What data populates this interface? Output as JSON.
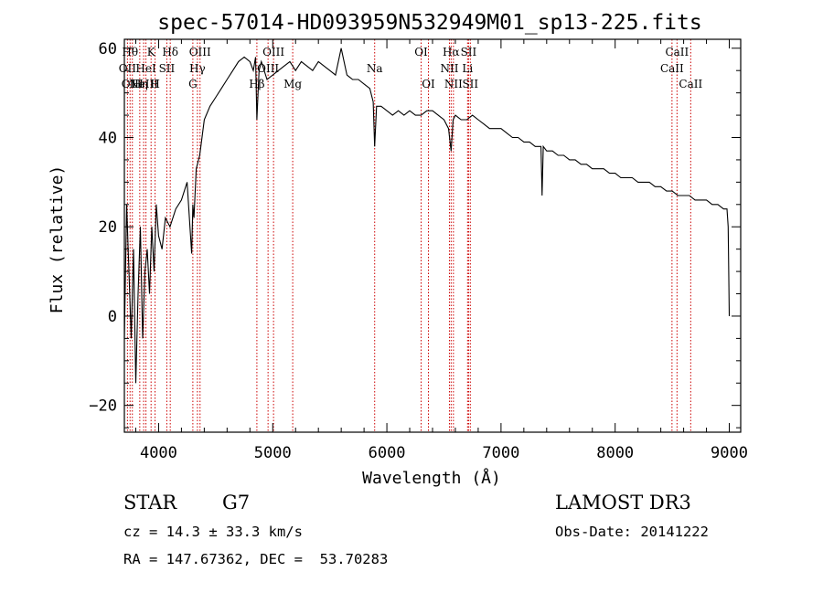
{
  "chart_data": {
    "type": "line",
    "title": "spec-57014-HD093959N532949M01_sp13-225.fits",
    "xlabel": "Wavelength (Å)",
    "ylabel": "Flux (relative)",
    "xlim": [
      3700,
      9100
    ],
    "ylim": [
      -26,
      62
    ],
    "xticks": [
      4000,
      5000,
      6000,
      7000,
      8000,
      9000
    ],
    "yticks": [
      -20,
      0,
      20,
      40,
      60
    ],
    "grid": false,
    "legend": "none",
    "line_color": "#000000",
    "marker_color": "#cc0000",
    "series": [
      {
        "x": [
          3700,
          3720,
          3740,
          3760,
          3780,
          3800,
          3820,
          3840,
          3860,
          3880,
          3900,
          3920,
          3940,
          3960,
          3980,
          4000,
          4030,
          4060,
          4100,
          4150,
          4200,
          4250,
          4290,
          4300,
          4310,
          4330,
          4360,
          4400,
          4450,
          4500,
          4550,
          4600,
          4650,
          4700,
          4750,
          4800,
          4830,
          4850,
          4861,
          4880,
          4900,
          4950,
          5000,
          5050,
          5100,
          5150,
          5200,
          5250,
          5300,
          5350,
          5400,
          5450,
          5500,
          5550,
          5600,
          5650,
          5700,
          5750,
          5800,
          5850,
          5880,
          5893,
          5910,
          5950,
          6000,
          6050,
          6100,
          6150,
          6200,
          6250,
          6300,
          6350,
          6400,
          6450,
          6500,
          6540,
          6563,
          6580,
          6600,
          6650,
          6700,
          6750,
          6800,
          6850,
          6900,
          6950,
          7000,
          7050,
          7100,
          7150,
          7200,
          7250,
          7300,
          7350,
          7360,
          7370,
          7400,
          7450,
          7500,
          7550,
          7600,
          7650,
          7700,
          7750,
          7800,
          7850,
          7900,
          7950,
          8000,
          8050,
          8100,
          8150,
          8200,
          8250,
          8300,
          8350,
          8400,
          8450,
          8500,
          8550,
          8600,
          8650,
          8700,
          8750,
          8800,
          8850,
          8900,
          8950,
          8980,
          8990,
          9000
        ],
        "y": [
          -5,
          25,
          10,
          -5,
          15,
          -15,
          5,
          20,
          -5,
          10,
          15,
          5,
          20,
          10,
          25,
          18,
          15,
          22,
          20,
          24,
          26,
          30,
          14,
          25,
          22,
          33,
          36,
          44,
          47,
          49,
          51,
          53,
          55,
          57,
          58,
          57,
          55,
          58,
          44,
          55,
          57,
          53,
          54,
          55,
          56,
          57,
          55,
          57,
          56,
          55,
          57,
          56,
          55,
          54,
          60,
          54,
          53,
          53,
          52,
          51,
          48,
          38,
          47,
          47,
          46,
          45,
          46,
          45,
          46,
          45,
          45,
          46,
          46,
          45,
          44,
          42,
          37,
          44,
          45,
          44,
          44,
          45,
          44,
          43,
          42,
          42,
          42,
          41,
          40,
          40,
          39,
          39,
          38,
          38,
          27,
          38,
          37,
          37,
          36,
          36,
          35,
          35,
          34,
          34,
          33,
          33,
          33,
          32,
          32,
          31,
          31,
          31,
          30,
          30,
          30,
          29,
          29,
          28,
          28,
          27,
          27,
          27,
          26,
          26,
          26,
          25,
          25,
          24,
          24,
          20,
          0
        ]
      }
    ],
    "lines": [
      {
        "w": 3727,
        "row": 1,
        "label": "OII"
      },
      {
        "w": 3750,
        "row": 0,
        "label": "Hθ"
      },
      {
        "w": 3770,
        "row": 2,
        "label": "OIII"
      },
      {
        "w": 3835,
        "row": 2,
        "label": "Hη"
      },
      {
        "w": 3869,
        "row": 2,
        "label": "NeIII"
      },
      {
        "w": 3889,
        "row": 1,
        "label": "HeI"
      },
      {
        "w": 3934,
        "row": 0,
        "label": "K"
      },
      {
        "w": 3969,
        "row": 2,
        "label": "H"
      },
      {
        "w": 4072,
        "row": 1,
        "label": "SII"
      },
      {
        "w": 4102,
        "row": 0,
        "label": "Hδ"
      },
      {
        "w": 4300,
        "row": 2,
        "label": "G"
      },
      {
        "w": 4340,
        "row": 1,
        "label": "Hγ"
      },
      {
        "w": 4363,
        "row": 0,
        "label": "OIII"
      },
      {
        "w": 4861,
        "row": 2,
        "label": "Hβ"
      },
      {
        "w": 4959,
        "row": 1,
        "label": "OIII"
      },
      {
        "w": 5007,
        "row": 0,
        "label": "OIII"
      },
      {
        "w": 5175,
        "row": 2,
        "label": "Mg"
      },
      {
        "w": 5893,
        "row": 1,
        "label": "Na"
      },
      {
        "w": 6300,
        "row": 0,
        "label": "OI"
      },
      {
        "w": 6364,
        "row": 2,
        "label": "OI"
      },
      {
        "w": 6548,
        "row": 1,
        "label": "NII"
      },
      {
        "w": 6563,
        "row": 0,
        "label": "Hα"
      },
      {
        "w": 6583,
        "row": 2,
        "label": "NII"
      },
      {
        "w": 6707,
        "row": 1,
        "label": "Li"
      },
      {
        "w": 6716,
        "row": 0,
        "label": "SII"
      },
      {
        "w": 6731,
        "row": 2,
        "label": "SII"
      },
      {
        "w": 8498,
        "row": 1,
        "label": "CaII"
      },
      {
        "w": 8542,
        "row": 0,
        "label": "CaII"
      },
      {
        "w": 8662,
        "row": 2,
        "label": "CaII"
      }
    ]
  },
  "footer": {
    "object_type": "STAR",
    "subclass": "G7",
    "survey": "LAMOST DR3",
    "cz": "cz = 14.3 ± 33.3 km/s",
    "obs_date": "Obs-Date: 20141222",
    "coords": "RA = 147.67362, DEC =  53.70283"
  }
}
